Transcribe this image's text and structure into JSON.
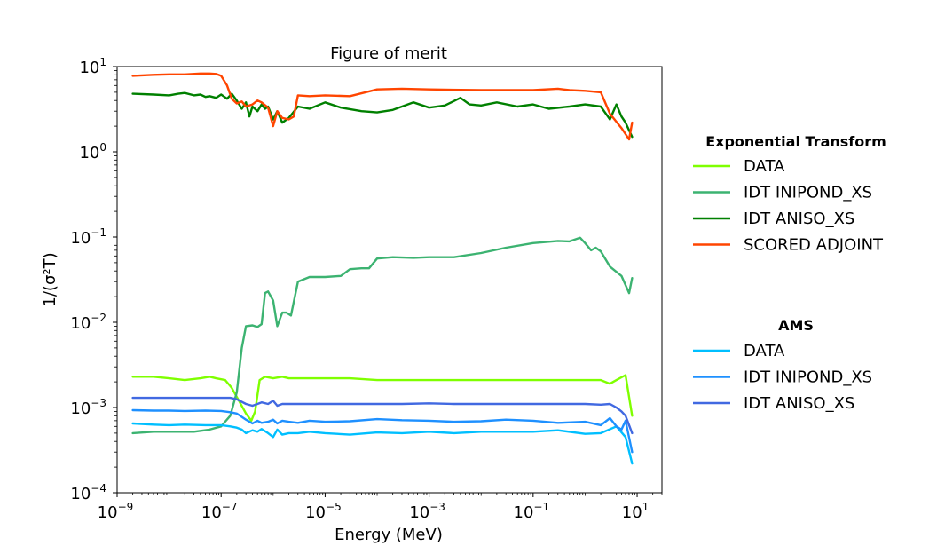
{
  "chart_data": {
    "type": "line",
    "title": "Figure of merit",
    "xlabel": "Energy (MeV)",
    "ylabel": "1/(σ²T)",
    "xscale": "log",
    "yscale": "log",
    "xlim": [
      1e-09,
      30
    ],
    "ylim": [
      0.0001,
      10
    ],
    "xticks": [
      {
        "base": "10",
        "exp": "−9"
      },
      {
        "base": "10",
        "exp": "−7"
      },
      {
        "base": "10",
        "exp": "−5"
      },
      {
        "base": "10",
        "exp": "−3"
      },
      {
        "base": "10",
        "exp": "−1"
      },
      {
        "base": "10",
        "exp": "1"
      }
    ],
    "yticks": [
      {
        "base": "10",
        "exp": "1"
      },
      {
        "base": "10",
        "exp": "0"
      },
      {
        "base": "10",
        "exp": "−1"
      },
      {
        "base": "10",
        "exp": "−2"
      },
      {
        "base": "10",
        "exp": "−3"
      },
      {
        "base": "10",
        "exp": "−4"
      }
    ],
    "grid": false,
    "legend_position": "right",
    "legend_groups": [
      {
        "title": "Exponential Transform",
        "series": [
          {
            "name": "DATA",
            "color": "#7fff00",
            "x": [
              2e-09,
              5e-09,
              1e-08,
              2e-08,
              4e-08,
              6e-08,
              8e-08,
              1.2e-07,
              1.6e-07,
              2.2e-07,
              3e-07,
              3.8e-07,
              4.5e-07,
              5.5e-07,
              7e-07,
              1e-06,
              1.5e-06,
              2e-06,
              3e-06,
              5e-06,
              1e-05,
              3e-05,
              0.0001,
              0.0005,
              0.001,
              0.01,
              0.1,
              1,
              2,
              3,
              4,
              6,
              8
            ],
            "y": [
              0.0023,
              0.0023,
              0.0022,
              0.0021,
              0.0022,
              0.0023,
              0.0022,
              0.0021,
              0.0017,
              0.0012,
              0.00085,
              0.0007,
              0.0009,
              0.0021,
              0.0023,
              0.0022,
              0.0023,
              0.0022,
              0.0022,
              0.0022,
              0.0022,
              0.0022,
              0.0021,
              0.0021,
              0.0021,
              0.0021,
              0.0021,
              0.0021,
              0.0021,
              0.0019,
              0.0021,
              0.0024,
              0.0008
            ]
          },
          {
            "name": "IDT INIPOND_XS",
            "color": "#3cb371",
            "x": [
              2e-09,
              5e-09,
              1e-08,
              3e-08,
              6e-08,
              1e-07,
              1.5e-07,
              2e-07,
              2.5e-07,
              3e-07,
              4e-07,
              5e-07,
              6e-07,
              7e-07,
              8e-07,
              1e-06,
              1.2e-06,
              1.5e-06,
              1.8e-06,
              2.2e-06,
              3e-06,
              5e-06,
              1e-05,
              2e-05,
              3e-05,
              5e-05,
              7e-05,
              0.0001,
              0.0002,
              0.0005,
              0.001,
              0.003,
              0.01,
              0.03,
              0.1,
              0.3,
              0.5,
              0.8,
              1,
              1.3,
              1.6,
              2,
              3,
              5,
              7,
              8
            ],
            "y": [
              0.0005,
              0.00052,
              0.00052,
              0.00052,
              0.00055,
              0.0006,
              0.0008,
              0.0015,
              0.005,
              0.009,
              0.0092,
              0.0088,
              0.0095,
              0.022,
              0.023,
              0.018,
              0.009,
              0.013,
              0.013,
              0.012,
              0.03,
              0.034,
              0.034,
              0.035,
              0.042,
              0.043,
              0.043,
              0.056,
              0.058,
              0.057,
              0.058,
              0.058,
              0.065,
              0.075,
              0.085,
              0.09,
              0.089,
              0.098,
              0.085,
              0.07,
              0.075,
              0.068,
              0.045,
              0.035,
              0.022,
              0.033
            ]
          },
          {
            "name": "IDT ANISO_XS",
            "color": "#008000",
            "x": [
              2e-09,
              5e-09,
              1e-08,
              1.5e-08,
              2e-08,
              3e-08,
              4e-08,
              5e-08,
              6e-08,
              8e-08,
              1e-07,
              1.3e-07,
              1.6e-07,
              2e-07,
              2.5e-07,
              3e-07,
              3.5e-07,
              4e-07,
              5e-07,
              6e-07,
              7e-07,
              8e-07,
              1e-06,
              1.2e-06,
              1.5e-06,
              2e-06,
              3e-06,
              5e-06,
              1e-05,
              2e-05,
              5e-05,
              0.0001,
              0.0002,
              0.0005,
              0.001,
              0.002,
              0.004,
              0.006,
              0.01,
              0.02,
              0.05,
              0.1,
              0.2,
              0.5,
              1,
              2,
              3,
              4,
              5,
              6,
              8
            ],
            "y": [
              4.8,
              4.7,
              4.6,
              4.8,
              4.9,
              4.6,
              4.7,
              4.4,
              4.5,
              4.3,
              4.7,
              4.2,
              4.8,
              4.0,
              3.2,
              3.8,
              2.6,
              3.4,
              3.0,
              3.6,
              3.2,
              3.4,
              2.4,
              3.0,
              2.2,
              2.5,
              3.4,
              3.2,
              3.8,
              3.3,
              3.0,
              2.9,
              3.1,
              3.8,
              3.3,
              3.5,
              4.3,
              3.6,
              3.5,
              3.8,
              3.4,
              3.6,
              3.2,
              3.4,
              3.6,
              3.4,
              2.4,
              3.6,
              2.6,
              2.2,
              1.5
            ]
          },
          {
            "name": "SCORED ADJOINT",
            "color": "#ff4500",
            "x": [
              2e-09,
              5e-09,
              1e-08,
              2e-08,
              4e-08,
              6e-08,
              8e-08,
              1e-07,
              1.3e-07,
              1.6e-07,
              2e-07,
              2.5e-07,
              3e-07,
              4e-07,
              5e-07,
              6e-07,
              8e-07,
              1e-06,
              1.2e-06,
              1.5e-06,
              2e-06,
              2.5e-06,
              3e-06,
              5e-06,
              1e-05,
              3e-05,
              0.0001,
              0.0003,
              0.001,
              0.01,
              0.1,
              0.3,
              0.5,
              1,
              2,
              3,
              5,
              7,
              8
            ],
            "y": [
              7.8,
              8.0,
              8.1,
              8.1,
              8.3,
              8.3,
              8.2,
              7.8,
              6.0,
              4.2,
              3.7,
              3.9,
              3.4,
              3.6,
              4.0,
              3.8,
              3.3,
              2.0,
              3.0,
              2.5,
              2.4,
              2.6,
              4.6,
              4.5,
              4.6,
              4.5,
              5.4,
              5.5,
              5.4,
              5.3,
              5.3,
              5.5,
              5.3,
              5.2,
              5.0,
              2.8,
              1.9,
              1.4,
              2.2
            ]
          }
        ]
      },
      {
        "title": "AMS",
        "series": [
          {
            "name": "DATA",
            "color": "#00bfff",
            "x": [
              2e-09,
              5e-09,
              1e-08,
              2e-08,
              5e-08,
              1e-07,
              1.5e-07,
              2e-07,
              2.5e-07,
              3e-07,
              4e-07,
              5e-07,
              6e-07,
              8e-07,
              1e-06,
              1.2e-06,
              1.5e-06,
              2e-06,
              3e-06,
              5e-06,
              1e-05,
              3e-05,
              0.0001,
              0.0003,
              0.001,
              0.003,
              0.01,
              0.1,
              0.3,
              1,
              2,
              4,
              6,
              8
            ],
            "y": [
              0.00065,
              0.00063,
              0.00062,
              0.00063,
              0.00062,
              0.00062,
              0.0006,
              0.00058,
              0.00055,
              0.0005,
              0.00054,
              0.00052,
              0.00056,
              0.0005,
              0.00045,
              0.00055,
              0.00048,
              0.0005,
              0.0005,
              0.00052,
              0.0005,
              0.00048,
              0.00051,
              0.0005,
              0.00052,
              0.0005,
              0.00052,
              0.00052,
              0.00054,
              0.00049,
              0.0005,
              0.0006,
              0.00045,
              0.00022
            ]
          },
          {
            "name": "IDT INIPOND_XS",
            "color": "#1e90ff",
            "x": [
              2e-09,
              5e-09,
              1e-08,
              2e-08,
              5e-08,
              1e-07,
              1.5e-07,
              2e-07,
              3e-07,
              4e-07,
              5e-07,
              6e-07,
              8e-07,
              1e-06,
              1.2e-06,
              1.5e-06,
              2e-06,
              3e-06,
              5e-06,
              1e-05,
              3e-05,
              0.0001,
              0.0003,
              0.001,
              0.003,
              0.01,
              0.03,
              0.1,
              0.3,
              1,
              2,
              3,
              4,
              5,
              6,
              8
            ],
            "y": [
              0.00093,
              0.00092,
              0.00092,
              0.00091,
              0.00092,
              0.00091,
              0.00088,
              0.00085,
              0.00072,
              0.00065,
              0.0007,
              0.00066,
              0.00068,
              0.00072,
              0.00065,
              0.0007,
              0.00068,
              0.00066,
              0.0007,
              0.00068,
              0.00069,
              0.00073,
              0.00071,
              0.0007,
              0.00068,
              0.00069,
              0.00072,
              0.0007,
              0.00066,
              0.00068,
              0.00062,
              0.00075,
              0.0006,
              0.00055,
              0.0007,
              0.0003
            ]
          },
          {
            "name": "IDT ANISO_XS",
            "color": "#4169e1",
            "x": [
              2e-09,
              5e-09,
              1e-08,
              2e-08,
              5e-08,
              1e-07,
              1.5e-07,
              2e-07,
              3e-07,
              4e-07,
              5e-07,
              6e-07,
              8e-07,
              1e-06,
              1.2e-06,
              1.5e-06,
              2e-06,
              3e-06,
              5e-06,
              1e-05,
              3e-05,
              0.0001,
              0.0003,
              0.001,
              0.003,
              0.01,
              0.03,
              0.1,
              0.3,
              1,
              2,
              3,
              4,
              5,
              6,
              8
            ],
            "y": [
              0.0013,
              0.0013,
              0.0013,
              0.0013,
              0.0013,
              0.0013,
              0.0013,
              0.00125,
              0.0011,
              0.00105,
              0.0011,
              0.00115,
              0.0011,
              0.0012,
              0.00105,
              0.0011,
              0.0011,
              0.0011,
              0.0011,
              0.0011,
              0.0011,
              0.0011,
              0.0011,
              0.00112,
              0.0011,
              0.0011,
              0.0011,
              0.0011,
              0.0011,
              0.0011,
              0.00108,
              0.0011,
              0.001,
              0.0009,
              0.0008,
              0.0005
            ]
          }
        ]
      }
    ]
  }
}
